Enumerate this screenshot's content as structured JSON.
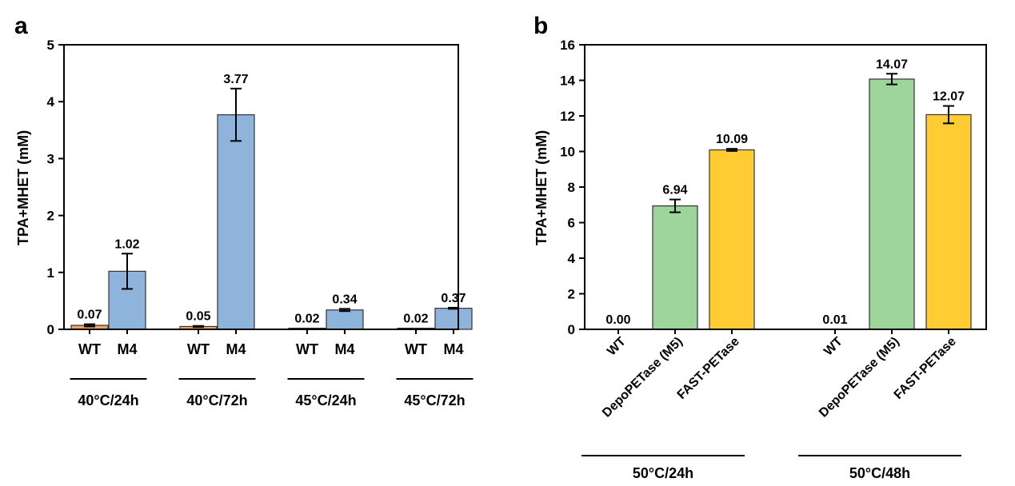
{
  "chart_data": [
    {
      "panel": "a",
      "type": "bar",
      "ylabel": "TPA+MHET (mM)",
      "ylim": [
        0,
        5
      ],
      "yticks": [
        0,
        1,
        2,
        3,
        4,
        5
      ],
      "groups": [
        {
          "label": "40°C/24h",
          "bars": [
            {
              "category": "WT",
              "value": 0.07,
              "error": 0.02,
              "label": "0.07",
              "color": "#f4a460"
            },
            {
              "category": "M4",
              "value": 1.02,
              "error": 0.31,
              "label": "1.02",
              "color": "#8fb4dc"
            }
          ]
        },
        {
          "label": "40°C/72h",
          "bars": [
            {
              "category": "WT",
              "value": 0.05,
              "error": 0.01,
              "label": "0.05",
              "color": "#f4a460"
            },
            {
              "category": "M4",
              "value": 3.77,
              "error": 0.46,
              "label": "3.77",
              "color": "#8fb4dc"
            }
          ]
        },
        {
          "label": "45°C/24h",
          "bars": [
            {
              "category": "WT",
              "value": 0.02,
              "error": 0.0,
              "label": "0.02",
              "color": "#f4a460"
            },
            {
              "category": "M4",
              "value": 0.34,
              "error": 0.02,
              "label": "0.34",
              "color": "#8fb4dc"
            }
          ]
        },
        {
          "label": "45°C/72h",
          "bars": [
            {
              "category": "WT",
              "value": 0.02,
              "error": 0.0,
              "label": "0.02",
              "color": "#f4a460"
            },
            {
              "category": "M4",
              "value": 0.37,
              "error": 0.01,
              "label": "0.37",
              "color": "#8fb4dc"
            }
          ]
        }
      ]
    },
    {
      "panel": "b",
      "type": "bar",
      "ylabel": "TPA+MHET (mM)",
      "ylim": [
        0,
        16
      ],
      "yticks": [
        0,
        2,
        4,
        6,
        8,
        10,
        12,
        14,
        16
      ],
      "groups": [
        {
          "label": "50°C/24h",
          "bars": [
            {
              "category": "WT",
              "value": 0.0,
              "error": 0.0,
              "label": "0.00",
              "color": "#f4a460"
            },
            {
              "category": "DepoPETase (M5)",
              "value": 6.94,
              "error": 0.36,
              "label": "6.94",
              "color": "#9dd59a"
            },
            {
              "category": "FAST-PETase",
              "value": 10.09,
              "error": 0.06,
              "label": "10.09",
              "color": "#ffcc33"
            }
          ]
        },
        {
          "label": "50°C/48h",
          "bars": [
            {
              "category": "WT",
              "value": 0.01,
              "error": 0.0,
              "label": "0.01",
              "color": "#f4a460"
            },
            {
              "category": "DepoPETase (M5)",
              "value": 14.07,
              "error": 0.3,
              "label": "14.07",
              "color": "#9dd59a"
            },
            {
              "category": "FAST-PETase",
              "value": 12.07,
              "error": 0.49,
              "label": "12.07",
              "color": "#ffcc33"
            }
          ]
        }
      ]
    }
  ]
}
